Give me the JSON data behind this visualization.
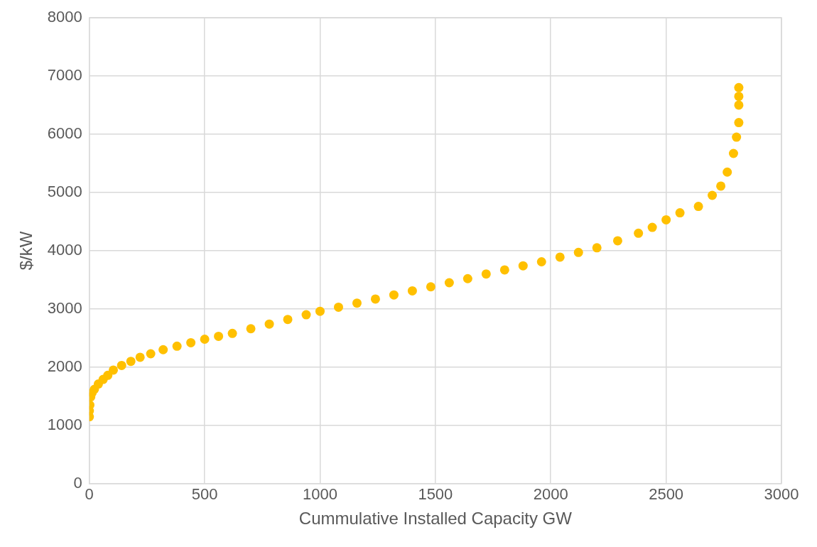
{
  "chart_data": {
    "type": "scatter",
    "xlabel": "Cummulative Installed Capacity GW",
    "ylabel": "$/kW",
    "xlim": [
      0,
      3000
    ],
    "xticks": [
      0,
      500,
      1000,
      1500,
      2000,
      2500,
      3000
    ],
    "ylim": [
      0,
      8000
    ],
    "yticks": [
      0,
      1000,
      2000,
      3000,
      4000,
      5000,
      6000,
      7000,
      8000
    ],
    "grid": true,
    "legend": false,
    "marker": "circle",
    "series": [
      {
        "color": "#ffc000",
        "x": [
          0,
          0,
          2,
          6,
          12,
          22,
          39,
          60,
          80,
          104,
          140,
          180,
          220,
          266,
          320,
          380,
          440,
          500,
          560,
          620,
          700,
          780,
          860,
          940,
          1000,
          1080,
          1160,
          1240,
          1320,
          1400,
          1480,
          1560,
          1640,
          1720,
          1800,
          1880,
          1960,
          2040,
          2120,
          2200,
          2290,
          2380,
          2440,
          2500,
          2560,
          2640,
          2700,
          2737,
          2765,
          2792,
          2805,
          2815,
          2815,
          2815,
          2815
        ],
        "values": [
          1150,
          1250,
          1350,
          1490,
          1560,
          1620,
          1710,
          1790,
          1860,
          1950,
          2030,
          2100,
          2170,
          2230,
          2300,
          2360,
          2420,
          2480,
          2530,
          2580,
          2660,
          2740,
          2820,
          2900,
          2960,
          3030,
          3100,
          3170,
          3240,
          3310,
          3380,
          3450,
          3520,
          3600,
          3670,
          3740,
          3810,
          3890,
          3970,
          4050,
          4170,
          4300,
          4400,
          4530,
          4650,
          4760,
          4950,
          5110,
          5350,
          5670,
          5950,
          6200,
          6500,
          6650,
          6800
        ]
      }
    ]
  }
}
